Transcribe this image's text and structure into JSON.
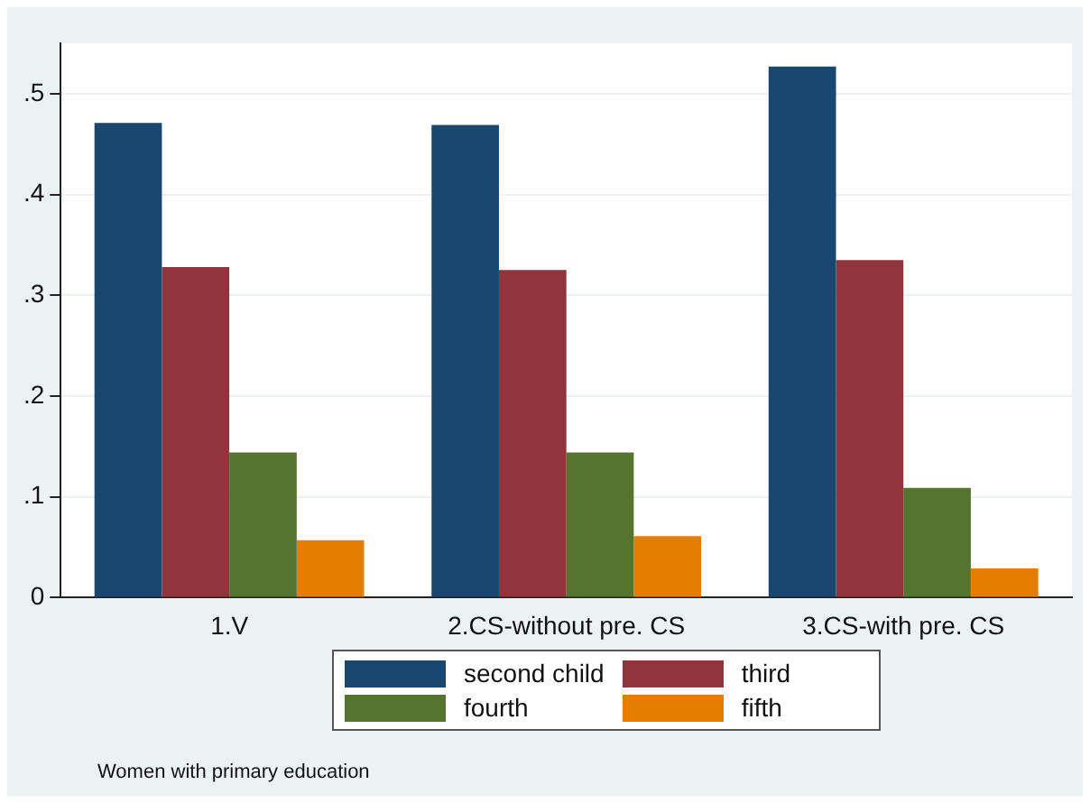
{
  "chart_data": {
    "type": "bar",
    "categories": [
      "1.V",
      "2.CS-without pre. CS",
      "3.CS-with pre. CS"
    ],
    "series": [
      {
        "name": "second child",
        "color": "#1a476f",
        "values": [
          0.471,
          0.469,
          0.527
        ]
      },
      {
        "name": "third",
        "color": "#90353b",
        "values": [
          0.328,
          0.325,
          0.335
        ]
      },
      {
        "name": "fourth",
        "color": "#55752f",
        "values": [
          0.144,
          0.144,
          0.109
        ]
      },
      {
        "name": "fifth",
        "color": "#e37e00",
        "values": [
          0.057,
          0.061,
          0.029
        ]
      }
    ],
    "ylim": [
      0,
      0.55
    ],
    "yticks": [
      {
        "value": 0,
        "label": "0"
      },
      {
        "value": 0.1,
        "label": ".1"
      },
      {
        "value": 0.2,
        "label": ".2"
      },
      {
        "value": 0.3,
        "label": ".3"
      },
      {
        "value": 0.4,
        "label": ".4"
      },
      {
        "value": 0.5,
        "label": ".5"
      }
    ],
    "grid": "y",
    "legend": "bottom",
    "annotations": [
      "Women with primary education"
    ]
  }
}
